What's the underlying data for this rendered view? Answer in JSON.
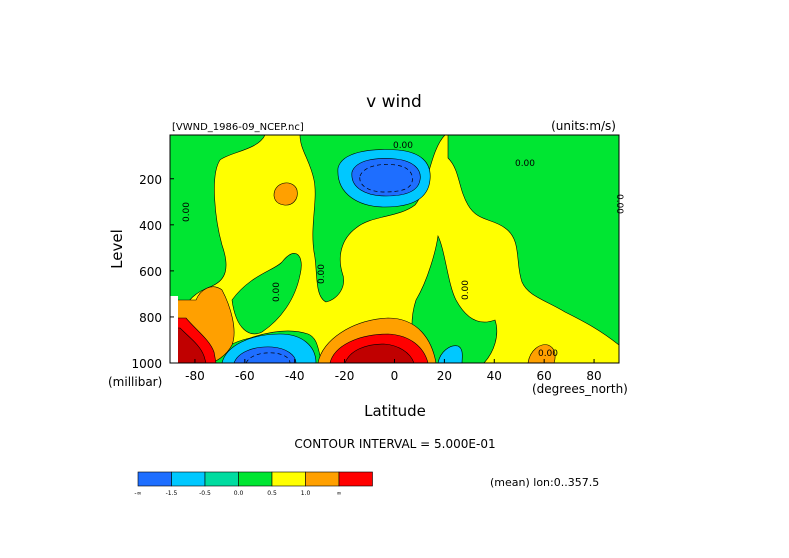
{
  "chart_data": {
    "type": "heatmap",
    "title": "v wind",
    "source_file": "[VWND_1986-09_NCEP.nc]",
    "units": "(units:m/s)",
    "xlabel": "Latitude",
    "xunit": "(degrees_north)",
    "ylabel": "Level",
    "yunit": "(millibar)",
    "xlim": [
      -90,
      90
    ],
    "ylim": [
      1000,
      10
    ],
    "y_inverted": true,
    "x_ticks": [
      "-80",
      "-60",
      "-40",
      "-20",
      "0",
      "20",
      "40",
      "60",
      "80"
    ],
    "y_ticks": [
      "200",
      "400",
      "600",
      "800",
      "1000"
    ],
    "contour_interval_text": "CONTOUR INTERVAL = 5.000E-01",
    "mean_text": "(mean) lon:0..357.5",
    "contour_labels": [
      "0.00",
      "0.00",
      "0.00",
      "0.00",
      "0.00",
      "0.00",
      "0.00",
      "0.00"
    ],
    "colorbar": {
      "colors": [
        "#1e6eff",
        "#00c8ff",
        "#00dca0",
        "#00e632",
        "#ffff00",
        "#ffa000",
        "#ff0000"
      ],
      "labels": [
        "-∞",
        "-1.5",
        "-0.5",
        "0.0",
        "0.5",
        "1.0",
        "∞"
      ]
    },
    "features": [
      {
        "kind": "negative-max",
        "lat": -5,
        "level": 170,
        "value": -2.0
      },
      {
        "kind": "negative",
        "lat": -60,
        "level": 980,
        "value": -1.0
      },
      {
        "kind": "negative",
        "lat": 23,
        "level": 980,
        "value": -0.5
      },
      {
        "kind": "positive-max",
        "lat": -12,
        "level": 990,
        "value": 2.0
      },
      {
        "kind": "positive-max",
        "lat": -82,
        "level": 960,
        "value": 2.5
      },
      {
        "kind": "positive",
        "lat": -72,
        "level": 780,
        "value": 1.0
      },
      {
        "kind": "positive",
        "lat": -45,
        "level": 250,
        "value": 0.6
      },
      {
        "kind": "positive",
        "lat": 58,
        "level": 990,
        "value": 0.6
      }
    ]
  }
}
